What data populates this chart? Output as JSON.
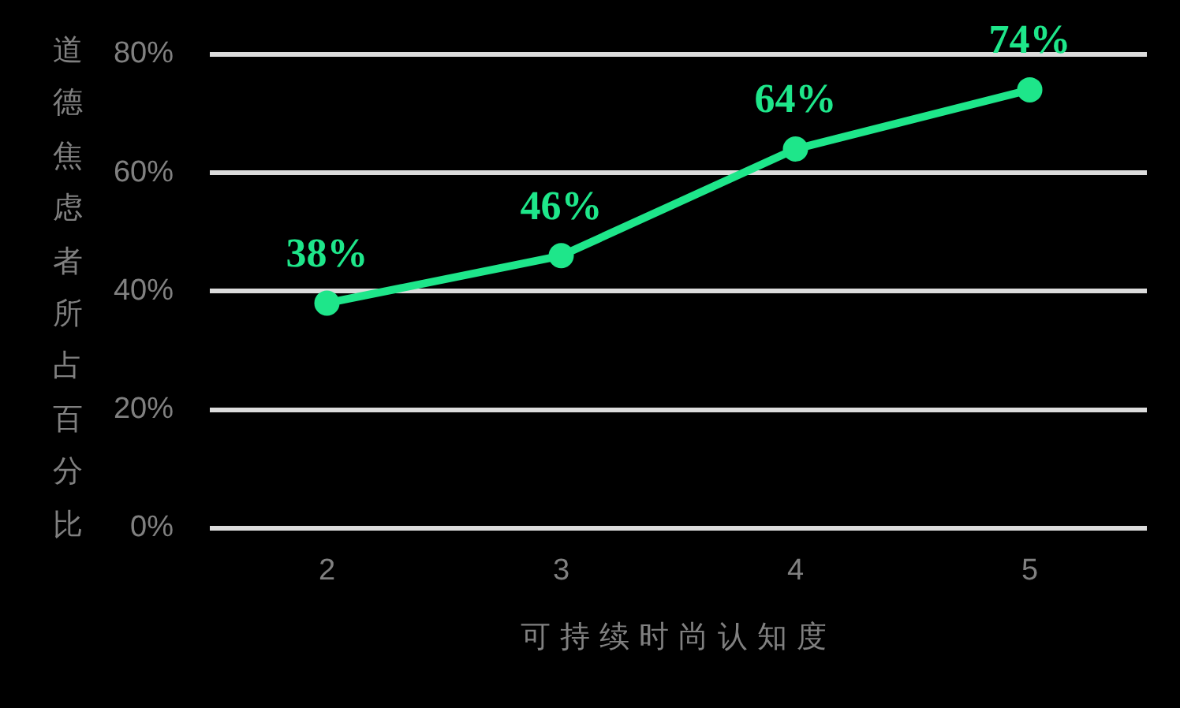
{
  "chart_data": {
    "type": "line",
    "xlabel": "可持续时尚认知度",
    "ylabel": "道德焦虑者所占百分比",
    "categories": [
      "2",
      "3",
      "4",
      "5"
    ],
    "series": [
      {
        "color": "#1ee68a",
        "values": [
          38,
          46,
          64,
          74
        ],
        "value_labels": [
          "38%",
          "46%",
          "64%",
          "74%"
        ]
      }
    ],
    "ylim": [
      0,
      80
    ],
    "yticks": [
      {
        "value": 0,
        "label": "0%"
      },
      {
        "value": 20,
        "label": "20%"
      },
      {
        "value": 40,
        "label": "40%"
      },
      {
        "value": 60,
        "label": "60%"
      },
      {
        "value": 80,
        "label": "80%"
      }
    ],
    "grid": "y",
    "marker": "circle",
    "line_style": "solid"
  }
}
